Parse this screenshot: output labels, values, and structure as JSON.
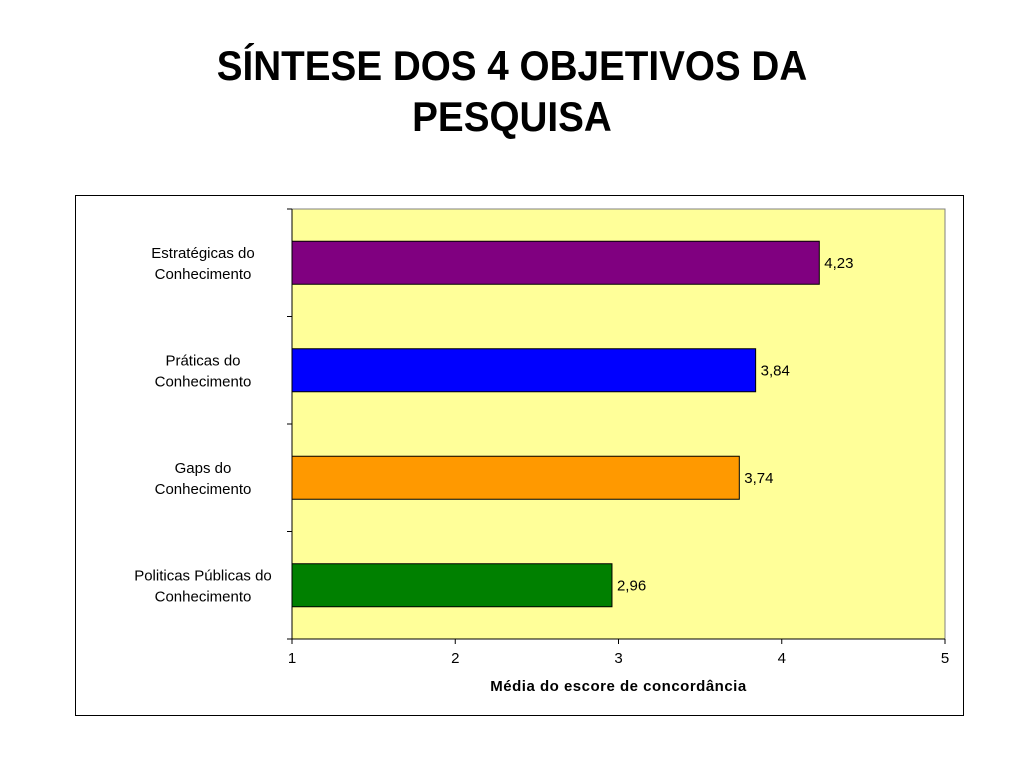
{
  "slide": {
    "title_line1": "SÍNTESE DOS 4 OBJETIVOS DA",
    "title_line2": "PESQUISA"
  },
  "chart_data": {
    "type": "bar",
    "orientation": "horizontal",
    "categories": [
      [
        "Estratégicas do",
        "Conhecimento"
      ],
      [
        "Práticas do",
        "Conhecimento"
      ],
      [
        "Gaps do",
        "Conhecimento"
      ],
      [
        "Politicas Públicas do",
        "Conhecimento"
      ]
    ],
    "values": [
      4.23,
      3.84,
      3.74,
      2.96
    ],
    "value_labels": [
      "4,23",
      "3,84",
      "3,74",
      "2,96"
    ],
    "bar_colors": [
      "#800080",
      "#0000FF",
      "#FF9900",
      "#008000"
    ],
    "xlabel": "Média do escore de concordância",
    "xlim": [
      1,
      5
    ],
    "xticks": [
      "1",
      "2",
      "3",
      "4",
      "5"
    ],
    "plot_background": "#FFFF99",
    "grid": false,
    "legend": "none"
  }
}
